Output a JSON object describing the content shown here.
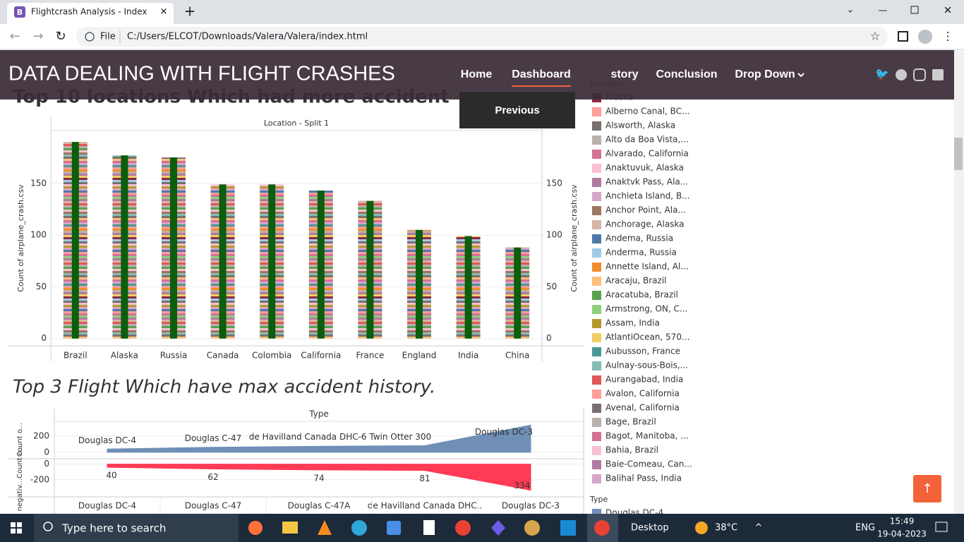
{
  "browser": {
    "tab_title": "Flightcrash Analysis - Index",
    "url_scheme": "File",
    "url": "C:/Users/ELCOT/Downloads/Valera/Valera/index.html"
  },
  "nav": {
    "brand": "DATA DEALING WITH FLIGHT CRASHES",
    "links": [
      "Home",
      "Dashboard",
      "story",
      "Conclusion",
      "Drop Down"
    ],
    "active": 1
  },
  "previous_button": "Previous",
  "chart_data": [
    {
      "type": "bar",
      "title": "Top 10 locations Which had more accident",
      "subtitle": "Location - Split 1",
      "y_label": "Count of airplane_crash.csv",
      "categories": [
        "Brazil",
        "Alaska",
        "Russia",
        "Canada",
        "Colombia",
        "California",
        "France",
        "England",
        "India",
        "China"
      ],
      "values": [
        190,
        177,
        175,
        149,
        149,
        143,
        133,
        105,
        99,
        88
      ],
      "color": "#0b5e0b",
      "ylim": [
        -7,
        201
      ],
      "yticks": [
        0,
        50,
        100,
        150
      ],
      "grid": true
    },
    {
      "type": "area",
      "title": "Top 3 Flight Which have max accident history.",
      "header": "Type",
      "categories": [
        "Douglas DC-4",
        "Douglas C-47",
        "Douglas C-47A",
        "de Havilland Canada DHC..",
        "Douglas DC-3"
      ],
      "panels": [
        {
          "y_label": "Count o...",
          "values": [
            40,
            62,
            74,
            81,
            334
          ],
          "point_labels": [
            "Douglas DC-4",
            "Douglas C-47",
            null,
            "de Havilland Canada DHC-6 Twin Otter 300",
            "Douglas DC-3"
          ],
          "color": "#6f8fb6",
          "ylim": [
            -70,
            380
          ],
          "yticks": [
            0,
            200
          ]
        },
        {
          "y_label": "negativ...Count o...",
          "values": [
            -40,
            -62,
            -74,
            -81,
            -334
          ],
          "value_labels": [
            "40",
            "62",
            "74",
            "81",
            "334"
          ],
          "color": "#ff3b55",
          "ylim": [
            -410,
            60
          ],
          "yticks": [
            0,
            -200
          ]
        }
      ]
    }
  ],
  "legend": {
    "title": "Location",
    "items": [
      {
        "name": "Alaska",
        "color": "#8b2942"
      },
      {
        "name": "Alberno Canal, BC...",
        "color": "#ff9d9a"
      },
      {
        "name": "Alsworth, Alaska",
        "color": "#79706e"
      },
      {
        "name": "Alto da Boa Vista,...",
        "color": "#bab0ac"
      },
      {
        "name": "Alvarado, California",
        "color": "#d37295"
      },
      {
        "name": "Anaktuvuk, Alaska",
        "color": "#fabfd2"
      },
      {
        "name": "Anaktvk Pass, Ala...",
        "color": "#b07aa1"
      },
      {
        "name": "Anchieta Island, B...",
        "color": "#d4a6c8"
      },
      {
        "name": "Anchor Point, Ala...",
        "color": "#9d7660"
      },
      {
        "name": "Anchorage, Alaska",
        "color": "#d7b5a6"
      },
      {
        "name": "Andema, Russia",
        "color": "#4e79a7"
      },
      {
        "name": "Anderma, Russia",
        "color": "#a0cbe8"
      },
      {
        "name": "Annette Island, Al...",
        "color": "#f28e2b"
      },
      {
        "name": "Aracaju, Brazil",
        "color": "#ffbe7d"
      },
      {
        "name": "Aracatuba, Brazil",
        "color": "#59a14f"
      },
      {
        "name": "Armstrong, ON, C...",
        "color": "#8cd17d"
      },
      {
        "name": "Assam, India",
        "color": "#b6992d"
      },
      {
        "name": "AtlantiOcean, 570...",
        "color": "#f1ce63"
      },
      {
        "name": "Aubusson, France",
        "color": "#499894"
      },
      {
        "name": "Aulnay-sous-Bois,...",
        "color": "#86bcb6"
      },
      {
        "name": "Aurangabad, India",
        "color": "#e15759"
      },
      {
        "name": "Avalon, California",
        "color": "#ff9d9a"
      },
      {
        "name": "Avenal, California",
        "color": "#79706e"
      },
      {
        "name": "Bage, Brazil",
        "color": "#bab0ac"
      },
      {
        "name": "Bagot, Manitoba, ...",
        "color": "#d37295"
      },
      {
        "name": "Bahia, Brazil",
        "color": "#fabfd2"
      },
      {
        "name": "Baie-Comeau, Can...",
        "color": "#b07aa1"
      },
      {
        "name": "Balihal Pass, India",
        "color": "#d4a6c8"
      }
    ],
    "type_title": "Type",
    "type_items": [
      {
        "name": "Douglas DC-4",
        "color": "#6f8fb6"
      }
    ]
  },
  "taskbar": {
    "search": "Type here to search",
    "desktop": "Desktop",
    "weather": "38°C",
    "language": "ENG",
    "time": "15:49",
    "date": "19-04-2023"
  }
}
